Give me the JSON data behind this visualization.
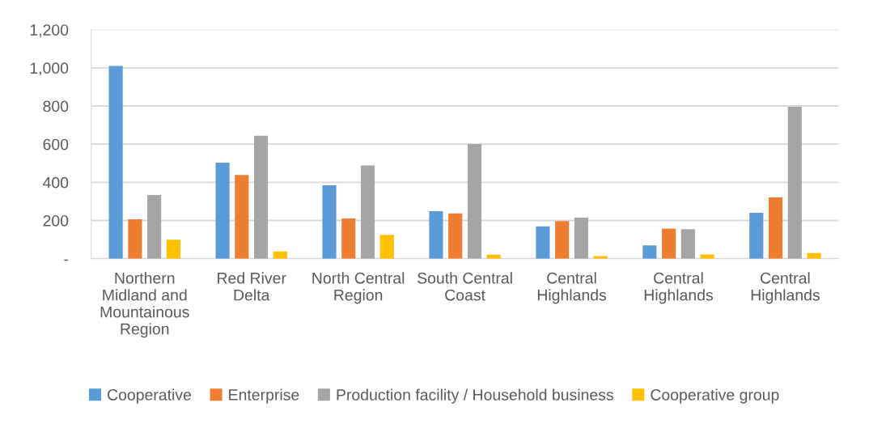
{
  "chart_data": {
    "type": "bar",
    "categories": [
      "Northern Midland and Mountainous Region",
      "Red River Delta",
      "North Central Region",
      "South Central Coast",
      "Central Highlands",
      "Central Highlands",
      "Central Highlands"
    ],
    "series": [
      {
        "name": "Cooperative",
        "color": "#5b9bd5",
        "values": [
          1010,
          503,
          384,
          249,
          169,
          69,
          240
        ]
      },
      {
        "name": "Enterprise",
        "color": "#ed7d31",
        "values": [
          206,
          438,
          210,
          237,
          197,
          157,
          321
        ]
      },
      {
        "name": "Production facility / Household business",
        "color": "#a5a5a5",
        "values": [
          334,
          644,
          488,
          601,
          215,
          154,
          796
        ]
      },
      {
        "name": "Cooperative group",
        "color": "#ffc000",
        "values": [
          99,
          38,
          125,
          21,
          13,
          22,
          29
        ]
      }
    ],
    "ylim": [
      0,
      1200
    ],
    "yticks": [
      {
        "value": 0,
        "label": "-"
      },
      {
        "value": 200,
        "label": "200"
      },
      {
        "value": 400,
        "label": "400"
      },
      {
        "value": 600,
        "label": "600"
      },
      {
        "value": 800,
        "label": "800"
      },
      {
        "value": 1000,
        "label": "1,000"
      },
      {
        "value": 1200,
        "label": "1,200"
      }
    ],
    "grid": "y",
    "legend": "bottom"
  }
}
